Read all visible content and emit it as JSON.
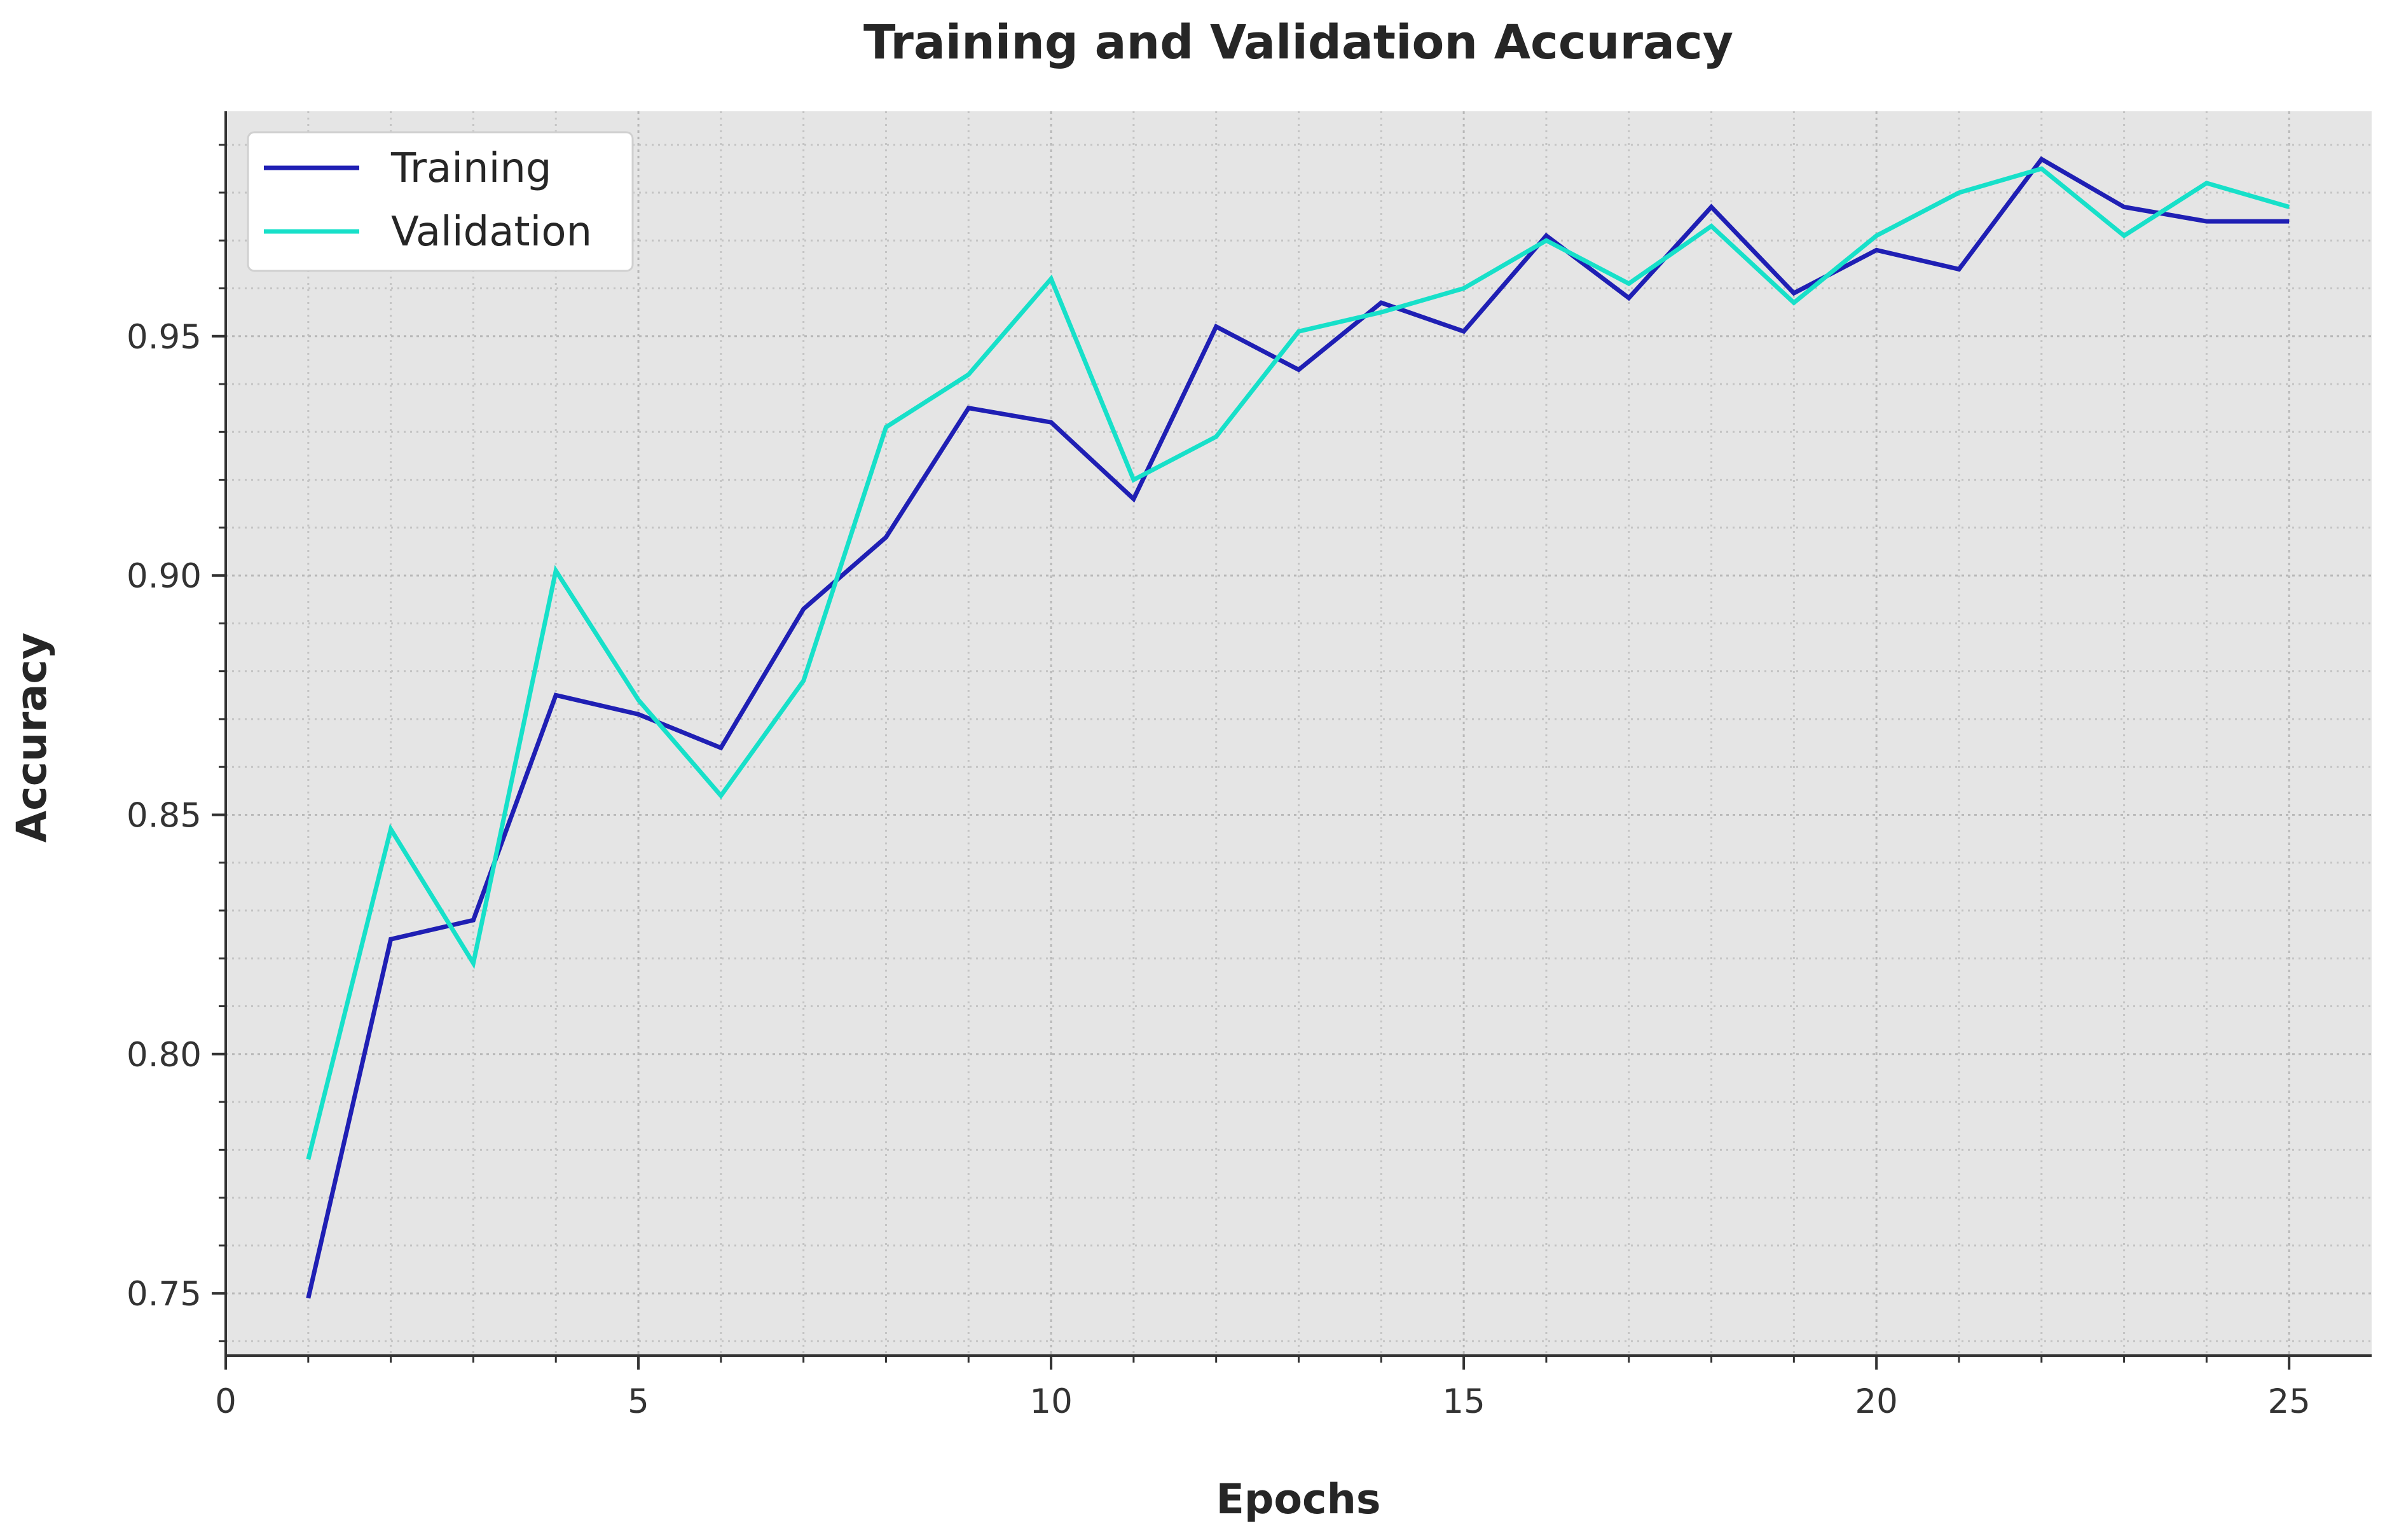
{
  "chart_data": {
    "type": "line",
    "title": "Training and Validation Accuracy",
    "xlabel": "Epochs",
    "ylabel": "Accuracy",
    "x": [
      1,
      2,
      3,
      4,
      5,
      6,
      7,
      8,
      9,
      10,
      11,
      12,
      13,
      14,
      15,
      16,
      17,
      18,
      19,
      20,
      21,
      22,
      23,
      24,
      25
    ],
    "series": [
      {
        "name": "Training",
        "color": "#1f1fb4",
        "values": [
          0.749,
          0.824,
          0.828,
          0.875,
          0.871,
          0.864,
          0.893,
          0.908,
          0.935,
          0.932,
          0.916,
          0.952,
          0.943,
          0.957,
          0.951,
          0.971,
          0.958,
          0.977,
          0.959,
          0.968,
          0.964,
          0.987,
          0.977,
          0.974,
          0.974
        ]
      },
      {
        "name": "Validation",
        "color": "#17e0c9",
        "values": [
          0.778,
          0.847,
          0.819,
          0.901,
          0.874,
          0.854,
          0.878,
          0.931,
          0.942,
          0.962,
          0.92,
          0.929,
          0.951,
          0.955,
          0.96,
          0.97,
          0.961,
          0.973,
          0.957,
          0.971,
          0.98,
          0.985,
          0.971,
          0.982,
          0.977
        ]
      }
    ],
    "xlim": [
      0,
      26
    ],
    "ylim": [
      0.737,
      0.997
    ],
    "xticks": [
      "0",
      "5",
      "10",
      "15",
      "20",
      "25"
    ],
    "yticks": [
      "0.75",
      "0.80",
      "0.85",
      "0.90",
      "0.95"
    ],
    "grid": true,
    "legend_position": "top-left",
    "background_color": "#e5e5e5"
  }
}
